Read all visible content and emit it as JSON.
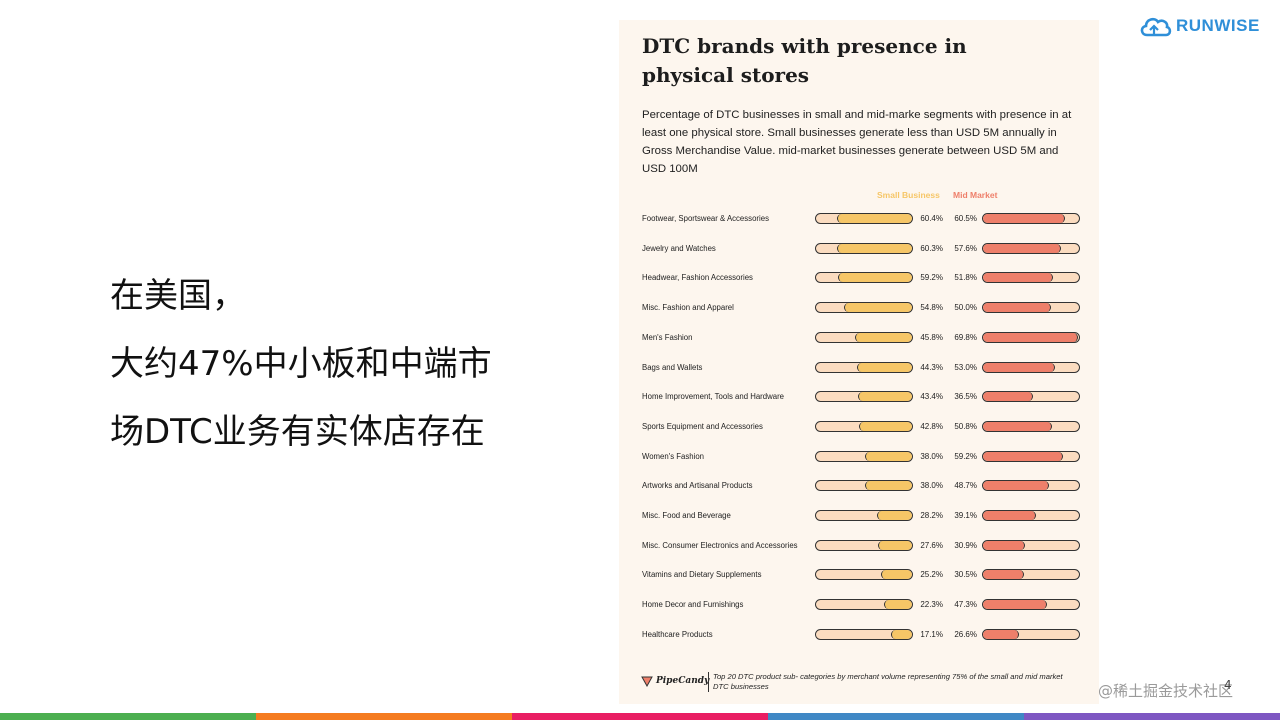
{
  "slide": {
    "lines": [
      "在美国，",
      "大约47%中小板和中端市",
      "场DTC业务有实体店存在"
    ],
    "logo_text": "RUNWISE",
    "watermark": "@稀土掘金技术社区",
    "page_number": "4",
    "bottom_bar_colors": [
      "#4caf50",
      "#f57c20",
      "#e91e63",
      "#3f88c5",
      "#7e57c2"
    ]
  },
  "footer": {
    "brand": "PipeCandy",
    "note": "Top 20 DTC product sub- categories by merchant volume representing 75% of the small and mid market DTC businesses"
  },
  "chart_data": {
    "type": "bar",
    "title": "DTC brands with presence in physical stores",
    "subtitle": "Percentage of DTC businesses in small and mid-marke segments with presence in at least one physical store. Small businesses generate less than USD 5M annually in Gross Merchandise Value. mid-market businesses generate between USD 5M and USD 100M",
    "legend": [
      "Small Business",
      "Mid Market"
    ],
    "colors": {
      "small": "#f6c667",
      "mid": "#ee7f6a",
      "track": "#fbdcc0"
    },
    "ylim": [
      0,
      100
    ],
    "categories": [
      "Footwear, Sportswear & Accessories",
      "Jewelry and Watches",
      "Headwear, Fashion Accessories",
      "Misc. Fashion and Apparel",
      "Men's Fashion",
      "Bags and Wallets",
      "Home Improvement, Tools and Hardware",
      "Sports Equipment and Accessories",
      "Women's Fashion",
      "Artworks and Artisanal Products",
      "Misc. Food and Beverage",
      "Misc. Consumer Electronics and Accessories",
      "Vitamins and Dietary Supplements",
      "Home Decor and Furnishings",
      "Healthcare Products"
    ],
    "series": [
      {
        "name": "Small Business",
        "values": [
          60.4,
          60.3,
          59.2,
          54.8,
          45.8,
          44.3,
          43.4,
          42.8,
          38.0,
          38.0,
          28.2,
          27.6,
          25.2,
          22.3,
          17.1
        ],
        "labels": [
          "60.4%",
          "60.3%",
          "59.2%",
          "54.8%",
          "45.8%",
          "44.3%",
          "43.4%",
          "42.8%",
          "38.0%",
          "38.0%",
          "28.2%",
          "27.6%",
          "25.2%",
          "22.3%",
          "17.1%"
        ]
      },
      {
        "name": "Mid Market",
        "values": [
          60.5,
          57.6,
          51.8,
          50.0,
          69.8,
          53.0,
          36.5,
          50.8,
          59.2,
          48.7,
          39.1,
          30.9,
          30.5,
          47.3,
          26.6
        ],
        "labels": [
          "60.5%",
          "57.6%",
          "51.8%",
          "50.0%",
          "69.8%",
          "53.0%",
          "36.5%",
          "50.8%",
          "59.2%",
          "48.7%",
          "39.1%",
          "30.9%",
          "30.5%",
          "47.3%",
          "26.6%"
        ]
      }
    ]
  }
}
